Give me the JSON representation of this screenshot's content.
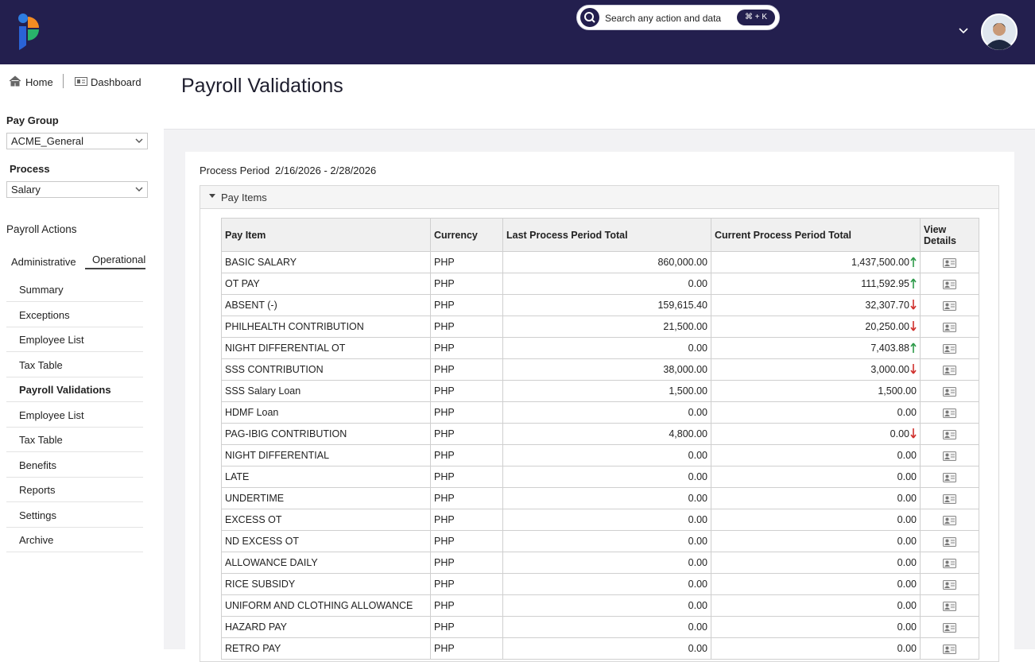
{
  "header": {
    "search_placeholder": "Search any action and data",
    "search_shortcut": "⌘ + K"
  },
  "breadcrumb": {
    "home": "Home",
    "dashboard": "Dashboard"
  },
  "sidebar": {
    "pay_group_label": "Pay Group",
    "pay_group_value": "ACME_General",
    "process_label": "Process",
    "process_value": "Salary",
    "actions_label": "Payroll Actions",
    "tabs": [
      "Administrative",
      "Operational"
    ],
    "active_tab": 1,
    "menu": [
      "Summary",
      "Exceptions",
      "Employee List",
      "Tax Table",
      "Payroll Validations",
      "Employee List",
      "Tax Table",
      "Benefits",
      "Reports",
      "Settings",
      "Archive"
    ],
    "active_menu": 4
  },
  "page": {
    "title": "Payroll Validations",
    "process_period_label": "Process Period",
    "process_period_value": "2/16/2026 - 2/28/2026",
    "section_title": "Pay Items"
  },
  "table": {
    "columns": [
      "Pay Item",
      "Currency",
      "Last Process Period Total",
      "Current Process Period Total",
      "View Details"
    ],
    "rows": [
      {
        "item": "BASIC SALARY",
        "currency": "PHP",
        "last": "860,000.00",
        "current": "1,437,500.00",
        "trend": "up"
      },
      {
        "item": "OT PAY",
        "currency": "PHP",
        "last": "0.00",
        "current": "111,592.95",
        "trend": "up"
      },
      {
        "item": "ABSENT (-)",
        "currency": "PHP",
        "last": "159,615.40",
        "current": "32,307.70",
        "trend": "down"
      },
      {
        "item": "PHILHEALTH CONTRIBUTION",
        "currency": "PHP",
        "last": "21,500.00",
        "current": "20,250.00",
        "trend": "down"
      },
      {
        "item": "NIGHT DIFFERENTIAL OT",
        "currency": "PHP",
        "last": "0.00",
        "current": "7,403.88",
        "trend": "up"
      },
      {
        "item": "SSS CONTRIBUTION",
        "currency": "PHP",
        "last": "38,000.00",
        "current": "3,000.00",
        "trend": "down"
      },
      {
        "item": "SSS Salary Loan",
        "currency": "PHP",
        "last": "1,500.00",
        "current": "1,500.00"
      },
      {
        "item": "HDMF Loan",
        "currency": "PHP",
        "last": "0.00",
        "current": "0.00"
      },
      {
        "item": "PAG-IBIG CONTRIBUTION",
        "currency": "PHP",
        "last": "4,800.00",
        "current": "0.00",
        "trend": "down"
      },
      {
        "item": "NIGHT DIFFERENTIAL",
        "currency": "PHP",
        "last": "0.00",
        "current": "0.00"
      },
      {
        "item": "LATE",
        "currency": "PHP",
        "last": "0.00",
        "current": "0.00"
      },
      {
        "item": "UNDERTIME",
        "currency": "PHP",
        "last": "0.00",
        "current": "0.00"
      },
      {
        "item": "EXCESS OT",
        "currency": "PHP",
        "last": "0.00",
        "current": "0.00"
      },
      {
        "item": "ND EXCESS OT",
        "currency": "PHP",
        "last": "0.00",
        "current": "0.00"
      },
      {
        "item": "ALLOWANCE DAILY",
        "currency": "PHP",
        "last": "0.00",
        "current": "0.00"
      },
      {
        "item": "RICE SUBSIDY",
        "currency": "PHP",
        "last": "0.00",
        "current": "0.00"
      },
      {
        "item": "UNIFORM AND CLOTHING ALLOWANCE",
        "currency": "PHP",
        "last": "0.00",
        "current": "0.00"
      },
      {
        "item": "HAZARD PAY",
        "currency": "PHP",
        "last": "0.00",
        "current": "0.00"
      },
      {
        "item": "RETRO PAY",
        "currency": "PHP",
        "last": "0.00",
        "current": "0.00"
      }
    ]
  }
}
